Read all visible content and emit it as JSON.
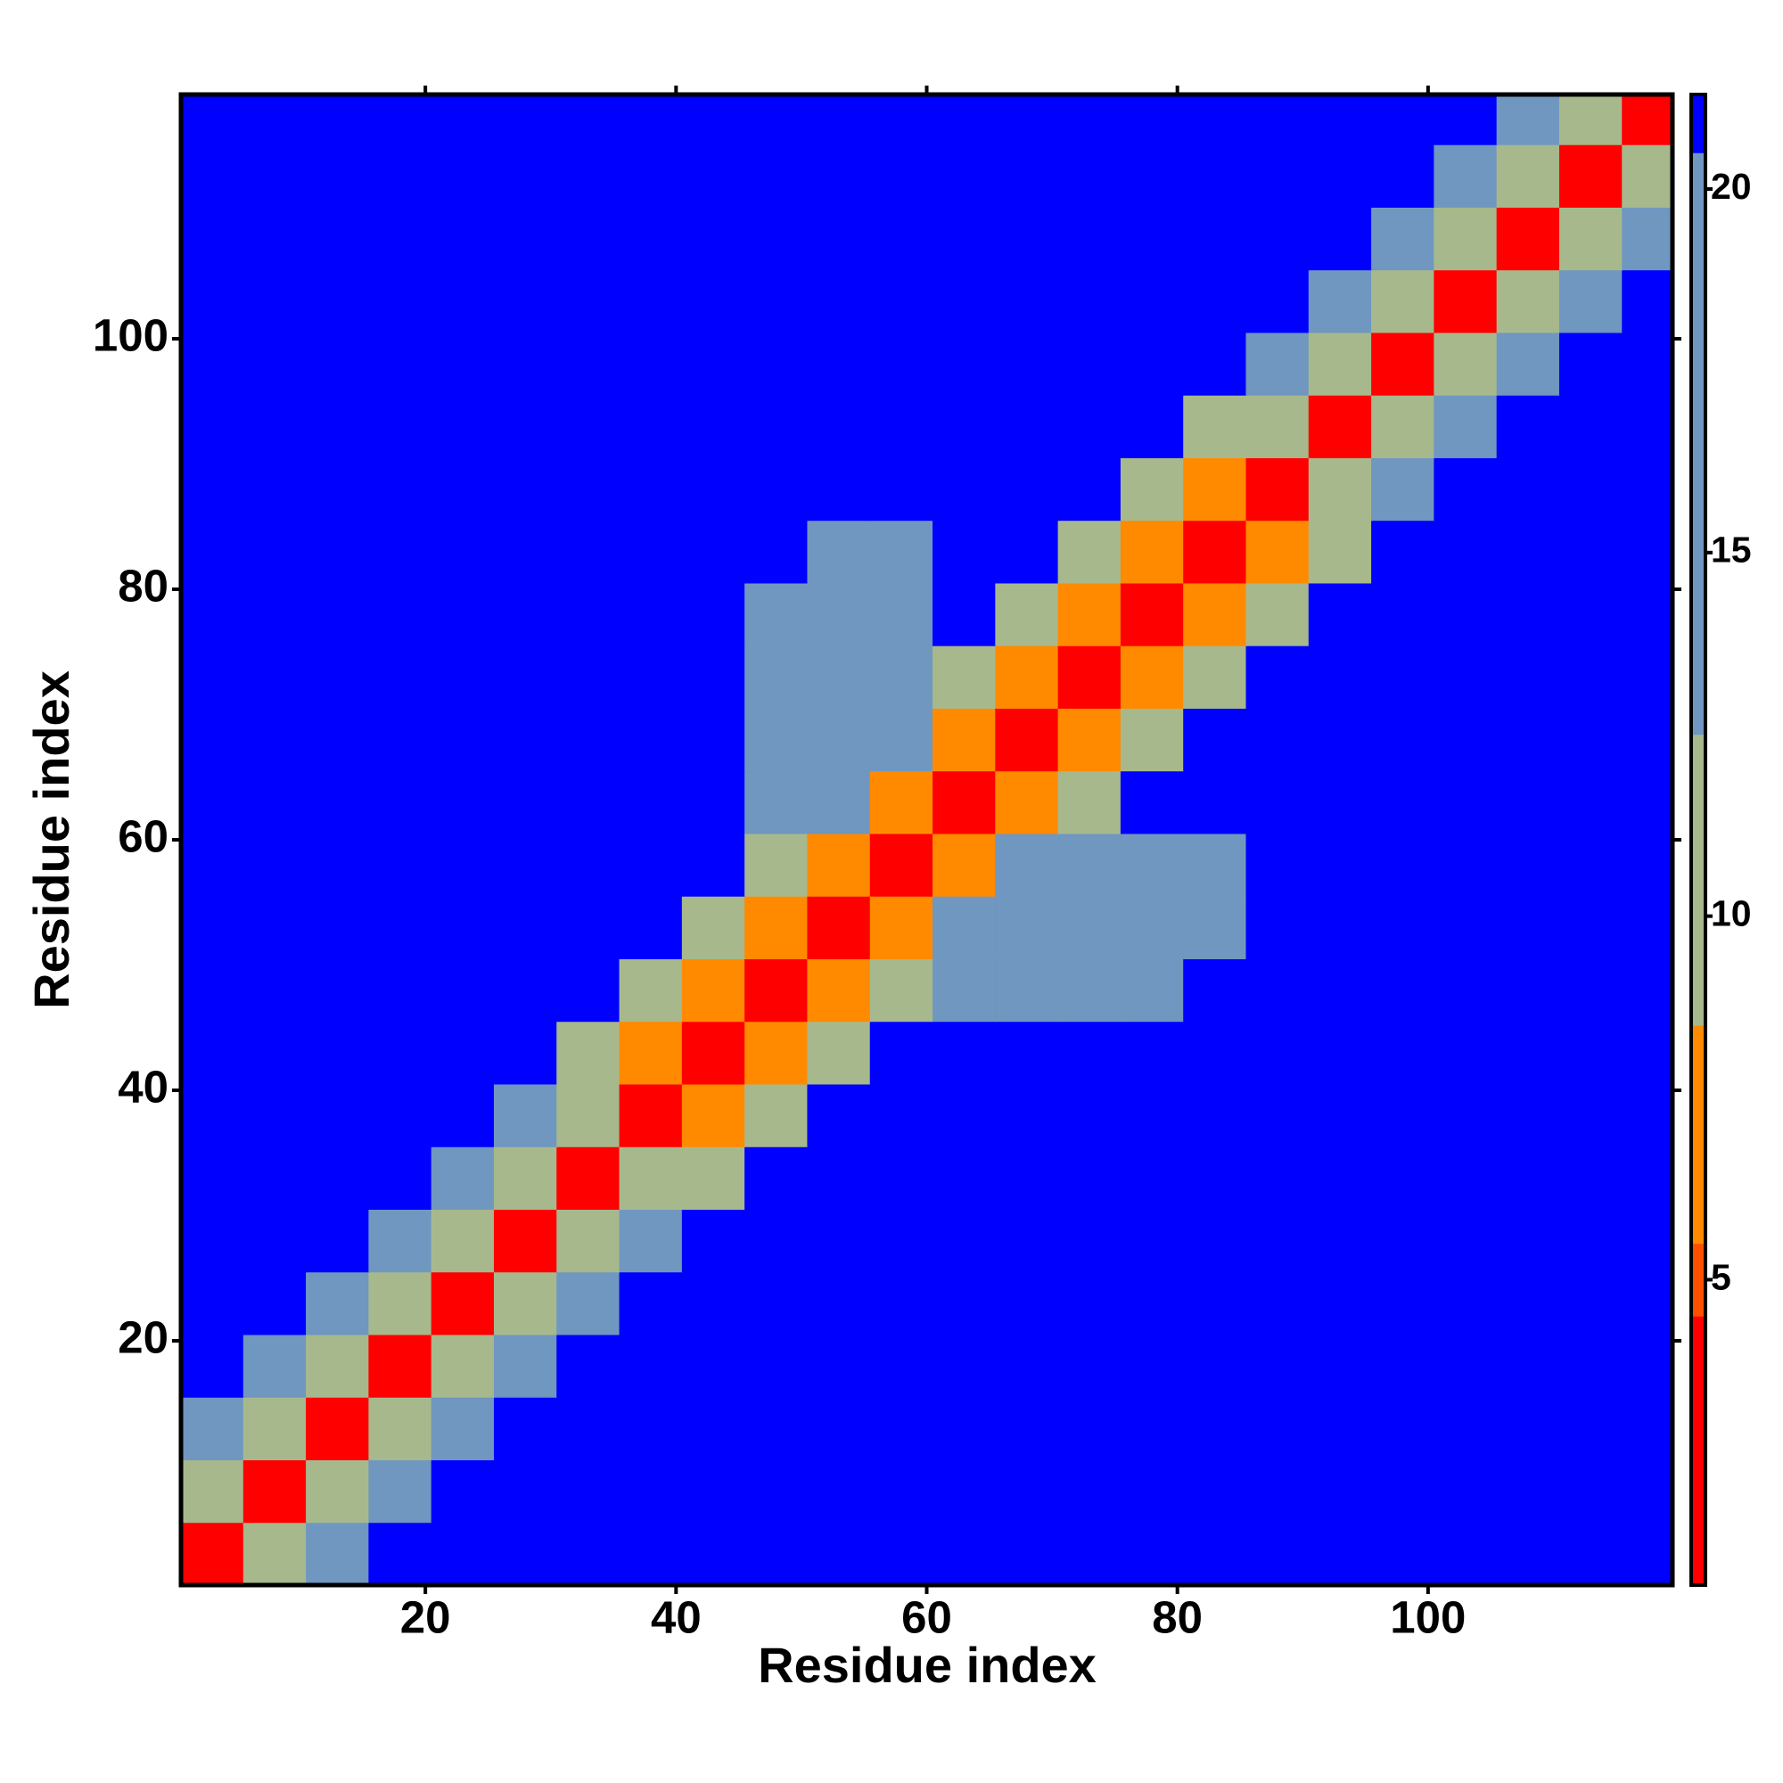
{
  "chart_data": {
    "type": "heatmap",
    "xlabel": "Residue index",
    "ylabel": "Residue index",
    "xlim": [
      0.5,
      119.5
    ],
    "ylim": [
      0.5,
      119.5
    ],
    "xticks": [
      20,
      40,
      60,
      80,
      100
    ],
    "yticks": [
      20,
      40,
      60,
      80,
      100
    ],
    "xbins": [
      0.5,
      5.5,
      10.5,
      15.5,
      20.5,
      25.5,
      30.5,
      35.5,
      40.5,
      45.5,
      50.5,
      55.5,
      60.5,
      65.5,
      70.5,
      75.5,
      80.5,
      85.5,
      90.5,
      95.5,
      100.5,
      105.5,
      110.5,
      115.5,
      119.5
    ],
    "ybins": [
      0.5,
      5.5,
      10.5,
      15.5,
      20.5,
      25.5,
      30.5,
      35.5,
      40.5,
      45.5,
      50.5,
      55.5,
      60.5,
      65.5,
      70.5,
      75.5,
      80.5,
      85.5,
      90.5,
      95.5,
      100.5,
      105.5,
      110.5,
      115.5,
      119.5
    ],
    "zlim": [
      0.8,
      21.3
    ],
    "zticks": [
      5,
      10,
      15,
      20
    ],
    "colorscale": [
      [
        0.8,
        "#ff0000"
      ],
      [
        4.5,
        "#ff5000"
      ],
      [
        5.5,
        "#ff8a00"
      ],
      [
        8.5,
        "#a7b98c"
      ],
      [
        12.5,
        "#7097c0"
      ],
      [
        20.5,
        "#0000ff"
      ]
    ],
    "values": [
      [
        3,
        10,
        17,
        21,
        21,
        21,
        21,
        21,
        21,
        21,
        21,
        21,
        21,
        21,
        21,
        21,
        21,
        21,
        21,
        21,
        21,
        21,
        21,
        21
      ],
      [
        10,
        3,
        10,
        17,
        21,
        21,
        21,
        21,
        21,
        21,
        21,
        21,
        21,
        21,
        21,
        21,
        21,
        21,
        21,
        21,
        21,
        21,
        21,
        21
      ],
      [
        17,
        10,
        3,
        10,
        17,
        21,
        21,
        21,
        21,
        21,
        21,
        21,
        21,
        21,
        21,
        21,
        21,
        21,
        21,
        21,
        21,
        21,
        21,
        21
      ],
      [
        21,
        17,
        10,
        3,
        10,
        17,
        21,
        21,
        21,
        21,
        21,
        21,
        21,
        21,
        21,
        21,
        21,
        21,
        21,
        21,
        21,
        21,
        21,
        21
      ],
      [
        21,
        21,
        17,
        10,
        3,
        10,
        17,
        21,
        21,
        21,
        21,
        21,
        21,
        21,
        21,
        21,
        21,
        21,
        21,
        21,
        21,
        21,
        21,
        21
      ],
      [
        21,
        21,
        21,
        17,
        10,
        3,
        10,
        17,
        21,
        21,
        21,
        21,
        21,
        21,
        21,
        21,
        21,
        21,
        21,
        21,
        21,
        21,
        21,
        21
      ],
      [
        21,
        21,
        21,
        21,
        17,
        10,
        3,
        10,
        12,
        21,
        21,
        21,
        21,
        21,
        21,
        21,
        21,
        21,
        21,
        21,
        21,
        21,
        21,
        21
      ],
      [
        21,
        21,
        21,
        21,
        21,
        17,
        10,
        3,
        7,
        12,
        21,
        21,
        21,
        21,
        21,
        21,
        21,
        21,
        21,
        21,
        21,
        21,
        21,
        21
      ],
      [
        21,
        21,
        21,
        21,
        21,
        21,
        12,
        7,
        3,
        7,
        12,
        21,
        21,
        21,
        21,
        21,
        21,
        21,
        21,
        21,
        21,
        21,
        21,
        21
      ],
      [
        21,
        21,
        21,
        21,
        21,
        21,
        21,
        12,
        7,
        3,
        7,
        12,
        14,
        14,
        14,
        14,
        21,
        21,
        21,
        21,
        21,
        21,
        21,
        21
      ],
      [
        21,
        21,
        21,
        21,
        21,
        21,
        21,
        21,
        12,
        7,
        3,
        7,
        14,
        14,
        14,
        14,
        15,
        21,
        21,
        21,
        21,
        21,
        21,
        21
      ],
      [
        21,
        21,
        21,
        21,
        21,
        21,
        21,
        21,
        21,
        12,
        7,
        3,
        7,
        14,
        14,
        14,
        15,
        21,
        21,
        21,
        21,
        21,
        21,
        21
      ],
      [
        21,
        21,
        21,
        21,
        21,
        21,
        21,
        21,
        21,
        14,
        14,
        7,
        3,
        7,
        12,
        21,
        21,
        21,
        21,
        21,
        21,
        21,
        21,
        21
      ],
      [
        21,
        21,
        21,
        21,
        21,
        21,
        21,
        21,
        21,
        14,
        14,
        14,
        7,
        3,
        7,
        12,
        21,
        21,
        21,
        21,
        21,
        21,
        21,
        21
      ],
      [
        21,
        21,
        21,
        21,
        21,
        21,
        21,
        21,
        21,
        14,
        14,
        14,
        12,
        7,
        3,
        7,
        12,
        21,
        21,
        21,
        21,
        21,
        21,
        21
      ],
      [
        21,
        21,
        21,
        21,
        21,
        21,
        21,
        21,
        21,
        14,
        14,
        14,
        21,
        12,
        7,
        3,
        7,
        12,
        21,
        21,
        21,
        21,
        21,
        21
      ],
      [
        21,
        21,
        21,
        21,
        21,
        21,
        21,
        21,
        21,
        21,
        15,
        15,
        21,
        21,
        12,
        7,
        3,
        7,
        12,
        21,
        21,
        21,
        21,
        21
      ],
      [
        21,
        21,
        21,
        21,
        21,
        21,
        21,
        21,
        21,
        21,
        21,
        21,
        21,
        21,
        21,
        12,
        7,
        3,
        10,
        17,
        21,
        21,
        21,
        21
      ],
      [
        21,
        21,
        21,
        21,
        21,
        21,
        21,
        21,
        21,
        21,
        21,
        21,
        21,
        21,
        21,
        21,
        12,
        10,
        3,
        10,
        17,
        21,
        21,
        21
      ],
      [
        21,
        21,
        21,
        21,
        21,
        21,
        21,
        21,
        21,
        21,
        21,
        21,
        21,
        21,
        21,
        21,
        21,
        17,
        10,
        3,
        10,
        17,
        21,
        21
      ],
      [
        21,
        21,
        21,
        21,
        21,
        21,
        21,
        21,
        21,
        21,
        21,
        21,
        21,
        21,
        21,
        21,
        21,
        21,
        17,
        10,
        3,
        10,
        17,
        21
      ],
      [
        21,
        21,
        21,
        21,
        21,
        21,
        21,
        21,
        21,
        21,
        21,
        21,
        21,
        21,
        21,
        21,
        21,
        21,
        21,
        17,
        10,
        3,
        10,
        17
      ],
      [
        21,
        21,
        21,
        21,
        21,
        21,
        21,
        21,
        21,
        21,
        21,
        21,
        21,
        21,
        21,
        21,
        21,
        21,
        21,
        21,
        17,
        10,
        3,
        10
      ],
      [
        21,
        21,
        21,
        21,
        21,
        21,
        21,
        21,
        21,
        21,
        21,
        21,
        21,
        21,
        21,
        21,
        21,
        21,
        21,
        21,
        21,
        17,
        10,
        3
      ]
    ]
  }
}
